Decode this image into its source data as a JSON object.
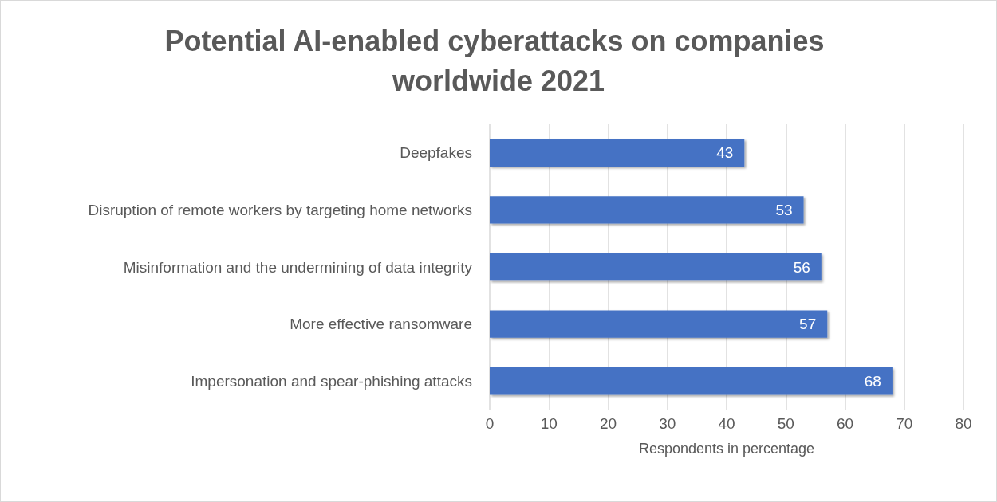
{
  "chart_data": {
    "type": "bar",
    "title": "Potential AI-enabled cyberattacks on companies worldwide 2021",
    "xlabel": "Respondents in percentage",
    "orientation": "horizontal",
    "categories": [
      "Deepfakes",
      "Disruption of remote workers by targeting home networks",
      "Misinformation and the undermining of data integrity",
      "More effective ransomware",
      "Impersonation and spear-phishing attacks"
    ],
    "values": [
      43,
      53,
      56,
      57,
      68
    ],
    "color": "#4472c4",
    "xlim": [
      0,
      80
    ],
    "xticks": [
      0,
      10,
      20,
      30,
      40,
      50,
      60,
      70,
      80
    ],
    "grid": "x",
    "data_labels": true
  }
}
